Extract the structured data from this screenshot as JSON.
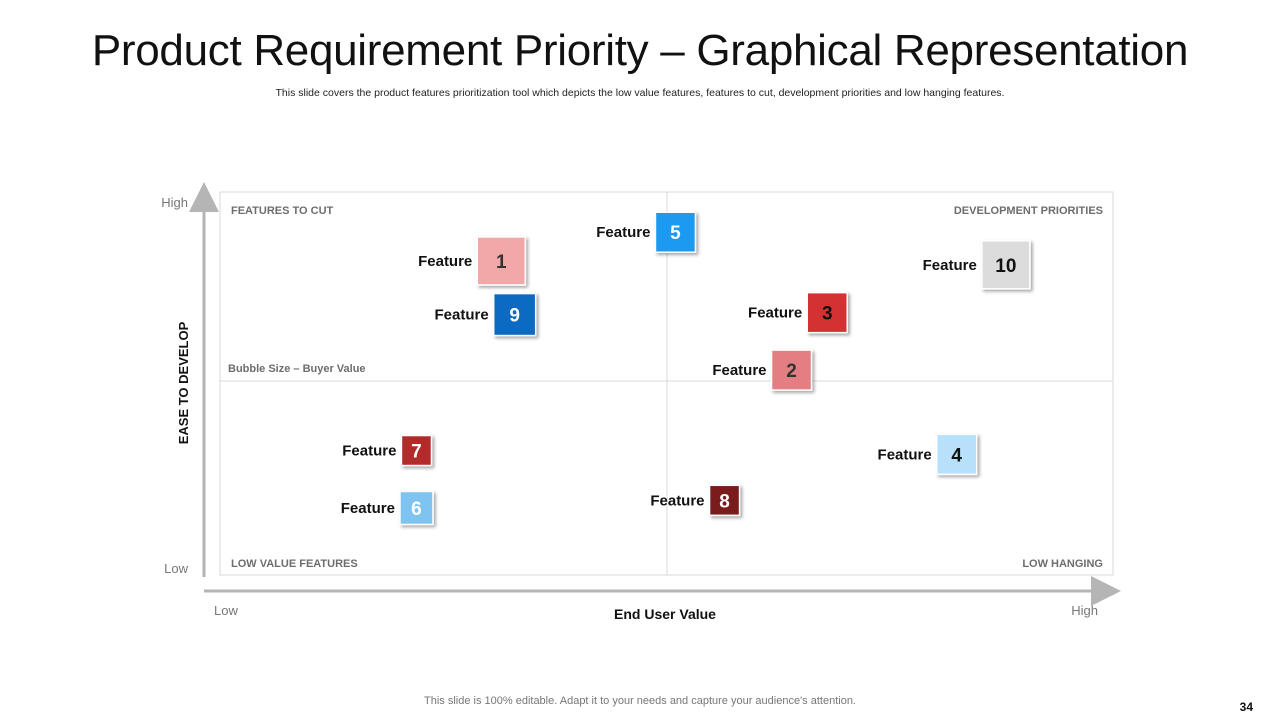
{
  "slide": {
    "title": "Product Requirement Priority – Graphical Representation",
    "subtitle": "This slide covers the product features prioritization tool which depicts the low value features, features to cut, development priorities and low hanging features.",
    "footer": "This slide is 100% editable. Adapt it to your needs and capture your audience's attention.",
    "page_number": "34"
  },
  "chart_data": {
    "type": "scatter",
    "title": "",
    "xlabel": "End User Value",
    "ylabel": "EASE TO DEVELOP",
    "x_low_label": "Low",
    "x_high_label": "High",
    "y_low_label": "Low",
    "y_high_label": "High",
    "xlim": [
      0,
      100
    ],
    "ylim": [
      0,
      100
    ],
    "size_note": "Bubble Size – Buyer Value",
    "quadrants": {
      "top_left": "FEATURES TO CUT",
      "top_right": "DEVELOPMENT PRIORITIES",
      "bottom_left": "LOW VALUE FEATURES",
      "bottom_right": "LOW HANGING"
    },
    "points": [
      {
        "id": "1",
        "label": "Feature",
        "x": 31.5,
        "y": 82.0,
        "size": 48,
        "color": "#f2a7a9",
        "text_color": "#333333",
        "label_side": "left"
      },
      {
        "id": "2",
        "label": "Feature",
        "x": 64.0,
        "y": 53.5,
        "size": 40,
        "color": "#e57e82",
        "text_color": "#333333",
        "label_side": "left"
      },
      {
        "id": "3",
        "label": "Feature",
        "x": 68.0,
        "y": 68.5,
        "size": 40,
        "color": "#d43131",
        "text_color": "#111111",
        "label_side": "left"
      },
      {
        "id": "4",
        "label": "Feature",
        "x": 82.5,
        "y": 31.5,
        "size": 40,
        "color": "#b7e1fa",
        "text_color": "#111111",
        "label_side": "left"
      },
      {
        "id": "5",
        "label": "Feature",
        "x": 51.0,
        "y": 89.5,
        "size": 40,
        "color": "#1e9af1",
        "text_color": "#ffffff",
        "label_side": "left"
      },
      {
        "id": "6",
        "label": "Feature",
        "x": 22.0,
        "y": 17.5,
        "size": 33,
        "color": "#7fc4f1",
        "text_color": "#ffffff",
        "label_side": "left"
      },
      {
        "id": "7",
        "label": "Feature",
        "x": 22.0,
        "y": 32.5,
        "size": 30,
        "color": "#b32a2a",
        "text_color": "#ffffff",
        "label_side": "left"
      },
      {
        "id": "8",
        "label": "Feature",
        "x": 56.5,
        "y": 19.5,
        "size": 30,
        "color": "#7a1a1a",
        "text_color": "#ffffff",
        "label_side": "left"
      },
      {
        "id": "9",
        "label": "Feature",
        "x": 33.0,
        "y": 68.0,
        "size": 42,
        "color": "#0e6bc2",
        "text_color": "#ffffff",
        "label_side": "left"
      },
      {
        "id": "10",
        "label": "Feature",
        "x": 88.0,
        "y": 81.0,
        "size": 48,
        "color": "#dcdcdc",
        "text_color": "#111111",
        "label_side": "left"
      }
    ]
  }
}
